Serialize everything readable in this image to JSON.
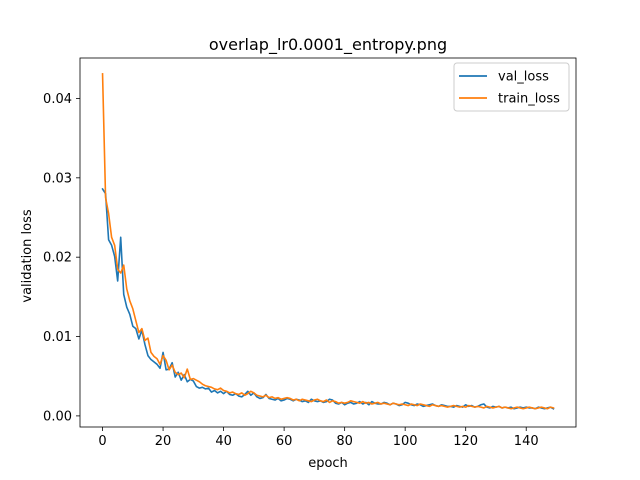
{
  "chart_data": {
    "type": "line",
    "title": "overlap_lr0.0001_entropy.png",
    "xlabel": "epoch",
    "ylabel": "validation loss",
    "xlim": [
      -7.45,
      156.45
    ],
    "ylim": [
      -0.0014,
      0.0451
    ],
    "xticks": [
      0,
      20,
      40,
      60,
      80,
      100,
      120,
      140
    ],
    "xtick_labels": [
      "0",
      "20",
      "40",
      "60",
      "80",
      "100",
      "120",
      "140"
    ],
    "yticks": [
      0.0,
      0.01,
      0.02,
      0.03,
      0.04
    ],
    "ytick_labels": [
      "0.00",
      "0.01",
      "0.02",
      "0.03",
      "0.04"
    ],
    "grid": false,
    "legend_position": "top-right",
    "series": [
      {
        "name": "val_loss",
        "color": "#1f77b4",
        "x": [
          0,
          1,
          2,
          3,
          4,
          5,
          6,
          7,
          8,
          9,
          10,
          11,
          12,
          13,
          14,
          15,
          16,
          17,
          18,
          19,
          20,
          21,
          22,
          23,
          24,
          25,
          26,
          27,
          28,
          29,
          30,
          31,
          32,
          33,
          34,
          35,
          36,
          37,
          38,
          39,
          40,
          41,
          42,
          43,
          44,
          45,
          46,
          47,
          48,
          49,
          50,
          51,
          52,
          53,
          54,
          55,
          56,
          57,
          58,
          59,
          60,
          61,
          62,
          63,
          64,
          65,
          66,
          67,
          68,
          69,
          70,
          71,
          72,
          73,
          74,
          75,
          76,
          77,
          78,
          79,
          80,
          81,
          82,
          83,
          84,
          85,
          86,
          87,
          88,
          89,
          90,
          91,
          92,
          93,
          94,
          95,
          96,
          97,
          98,
          99,
          100,
          101,
          102,
          103,
          104,
          105,
          106,
          107,
          108,
          109,
          110,
          111,
          112,
          113,
          114,
          115,
          116,
          117,
          118,
          119,
          120,
          121,
          122,
          123,
          124,
          125,
          126,
          127,
          128,
          129,
          130,
          131,
          132,
          133,
          134,
          135,
          136,
          137,
          138,
          139,
          140,
          141,
          142,
          143,
          144,
          145,
          146,
          147,
          148,
          149
        ],
        "values": [
          0.0286,
          0.028,
          0.0222,
          0.0215,
          0.0201,
          0.017,
          0.0225,
          0.0153,
          0.0137,
          0.0128,
          0.0113,
          0.011,
          0.0097,
          0.0108,
          0.009,
          0.0076,
          0.0071,
          0.0068,
          0.0065,
          0.006,
          0.008,
          0.0058,
          0.0059,
          0.0067,
          0.0049,
          0.0055,
          0.0045,
          0.0052,
          0.0043,
          0.0046,
          0.0044,
          0.0037,
          0.0035,
          0.0036,
          0.0034,
          0.0035,
          0.003,
          0.0032,
          0.0029,
          0.0031,
          0.0028,
          0.0031,
          0.0027,
          0.0026,
          0.0028,
          0.0025,
          0.0024,
          0.0027,
          0.0031,
          0.0026,
          0.0029,
          0.0024,
          0.0022,
          0.0023,
          0.0027,
          0.0022,
          0.0021,
          0.002,
          0.0022,
          0.0019,
          0.002,
          0.0022,
          0.0021,
          0.0019,
          0.0021,
          0.002,
          0.0018,
          0.0019,
          0.0017,
          0.0021,
          0.0019,
          0.0018,
          0.0019,
          0.0017,
          0.0018,
          0.0021,
          0.002,
          0.0016,
          0.0015,
          0.0017,
          0.0014,
          0.0016,
          0.0017,
          0.0015,
          0.0016,
          0.0018,
          0.0015,
          0.0017,
          0.0014,
          0.0018,
          0.0016,
          0.0015,
          0.0015,
          0.0017,
          0.0016,
          0.0014,
          0.0016,
          0.0015,
          0.0013,
          0.0014,
          0.0017,
          0.0016,
          0.0014,
          0.0013,
          0.0015,
          0.0014,
          0.0012,
          0.0013,
          0.0014,
          0.0015,
          0.0013,
          0.0012,
          0.0014,
          0.0013,
          0.0012,
          0.0012,
          0.0011,
          0.0013,
          0.0012,
          0.0011,
          0.0014,
          0.0012,
          0.0013,
          0.0011,
          0.0012,
          0.0014,
          0.0015,
          0.0011,
          0.001,
          0.0012,
          0.0011,
          0.0012,
          0.001,
          0.0011,
          0.001,
          0.0011,
          0.0009,
          0.001,
          0.0011,
          0.001,
          0.0011,
          0.001,
          0.001,
          0.0009,
          0.0011,
          0.001,
          0.0009,
          0.001,
          0.0011,
          0.0009
        ]
      },
      {
        "name": "train_loss",
        "color": "#ff7f0e",
        "x": [
          0,
          1,
          2,
          3,
          4,
          5,
          6,
          7,
          8,
          9,
          10,
          11,
          12,
          13,
          14,
          15,
          16,
          17,
          18,
          19,
          20,
          21,
          22,
          23,
          24,
          25,
          26,
          27,
          28,
          29,
          30,
          31,
          32,
          33,
          34,
          35,
          36,
          37,
          38,
          39,
          40,
          41,
          42,
          43,
          44,
          45,
          46,
          47,
          48,
          49,
          50,
          51,
          52,
          53,
          54,
          55,
          56,
          57,
          58,
          59,
          60,
          61,
          62,
          63,
          64,
          65,
          66,
          67,
          68,
          69,
          70,
          71,
          72,
          73,
          74,
          75,
          76,
          77,
          78,
          79,
          80,
          81,
          82,
          83,
          84,
          85,
          86,
          87,
          88,
          89,
          90,
          91,
          92,
          93,
          94,
          95,
          96,
          97,
          98,
          99,
          100,
          101,
          102,
          103,
          104,
          105,
          106,
          107,
          108,
          109,
          110,
          111,
          112,
          113,
          114,
          115,
          116,
          117,
          118,
          119,
          120,
          121,
          122,
          123,
          124,
          125,
          126,
          127,
          128,
          129,
          130,
          131,
          132,
          133,
          134,
          135,
          136,
          137,
          138,
          139,
          140,
          141,
          142,
          143,
          144,
          145,
          146,
          147,
          148,
          149
        ],
        "values": [
          0.0431,
          0.0275,
          0.0255,
          0.0225,
          0.0215,
          0.0185,
          0.018,
          0.019,
          0.016,
          0.0145,
          0.0135,
          0.012,
          0.0105,
          0.011,
          0.0095,
          0.0098,
          0.008,
          0.0075,
          0.0072,
          0.0065,
          0.0076,
          0.007,
          0.0058,
          0.0064,
          0.0055,
          0.0052,
          0.0054,
          0.0048,
          0.0059,
          0.0046,
          0.0047,
          0.0045,
          0.0043,
          0.004,
          0.0038,
          0.0037,
          0.0036,
          0.0034,
          0.0033,
          0.0035,
          0.0032,
          0.0031,
          0.0029,
          0.003,
          0.0028,
          0.0027,
          0.0029,
          0.0026,
          0.0028,
          0.0031,
          0.0029,
          0.0026,
          0.0025,
          0.0024,
          0.0026,
          0.0023,
          0.0024,
          0.0022,
          0.0023,
          0.0021,
          0.0022,
          0.0023,
          0.0022,
          0.002,
          0.0021,
          0.0019,
          0.0021,
          0.002,
          0.0019,
          0.0018,
          0.002,
          0.0021,
          0.0019,
          0.0018,
          0.002,
          0.0017,
          0.0019,
          0.0018,
          0.0016,
          0.0017,
          0.0016,
          0.0017,
          0.0019,
          0.0018,
          0.0017,
          0.0016,
          0.0018,
          0.0016,
          0.0017,
          0.0015,
          0.0016,
          0.0017,
          0.0015,
          0.0016,
          0.0015,
          0.0014,
          0.0016,
          0.0015,
          0.0014,
          0.0015,
          0.0014,
          0.0013,
          0.0015,
          0.0014,
          0.0013,
          0.0015,
          0.0014,
          0.0013,
          0.0012,
          0.0014,
          0.0013,
          0.0012,
          0.0013,
          0.0012,
          0.0011,
          0.0012,
          0.0013,
          0.0012,
          0.0011,
          0.0012,
          0.0011,
          0.0013,
          0.0012,
          0.0011,
          0.0012,
          0.0011,
          0.001,
          0.0012,
          0.0011,
          0.001,
          0.0011,
          0.0012,
          0.001,
          0.0011,
          0.001,
          0.0009,
          0.001,
          0.0011,
          0.001,
          0.0009,
          0.001,
          0.0011,
          0.001,
          0.0009,
          0.001,
          0.0011,
          0.001,
          0.0009,
          0.0011,
          0.001
        ]
      }
    ]
  }
}
